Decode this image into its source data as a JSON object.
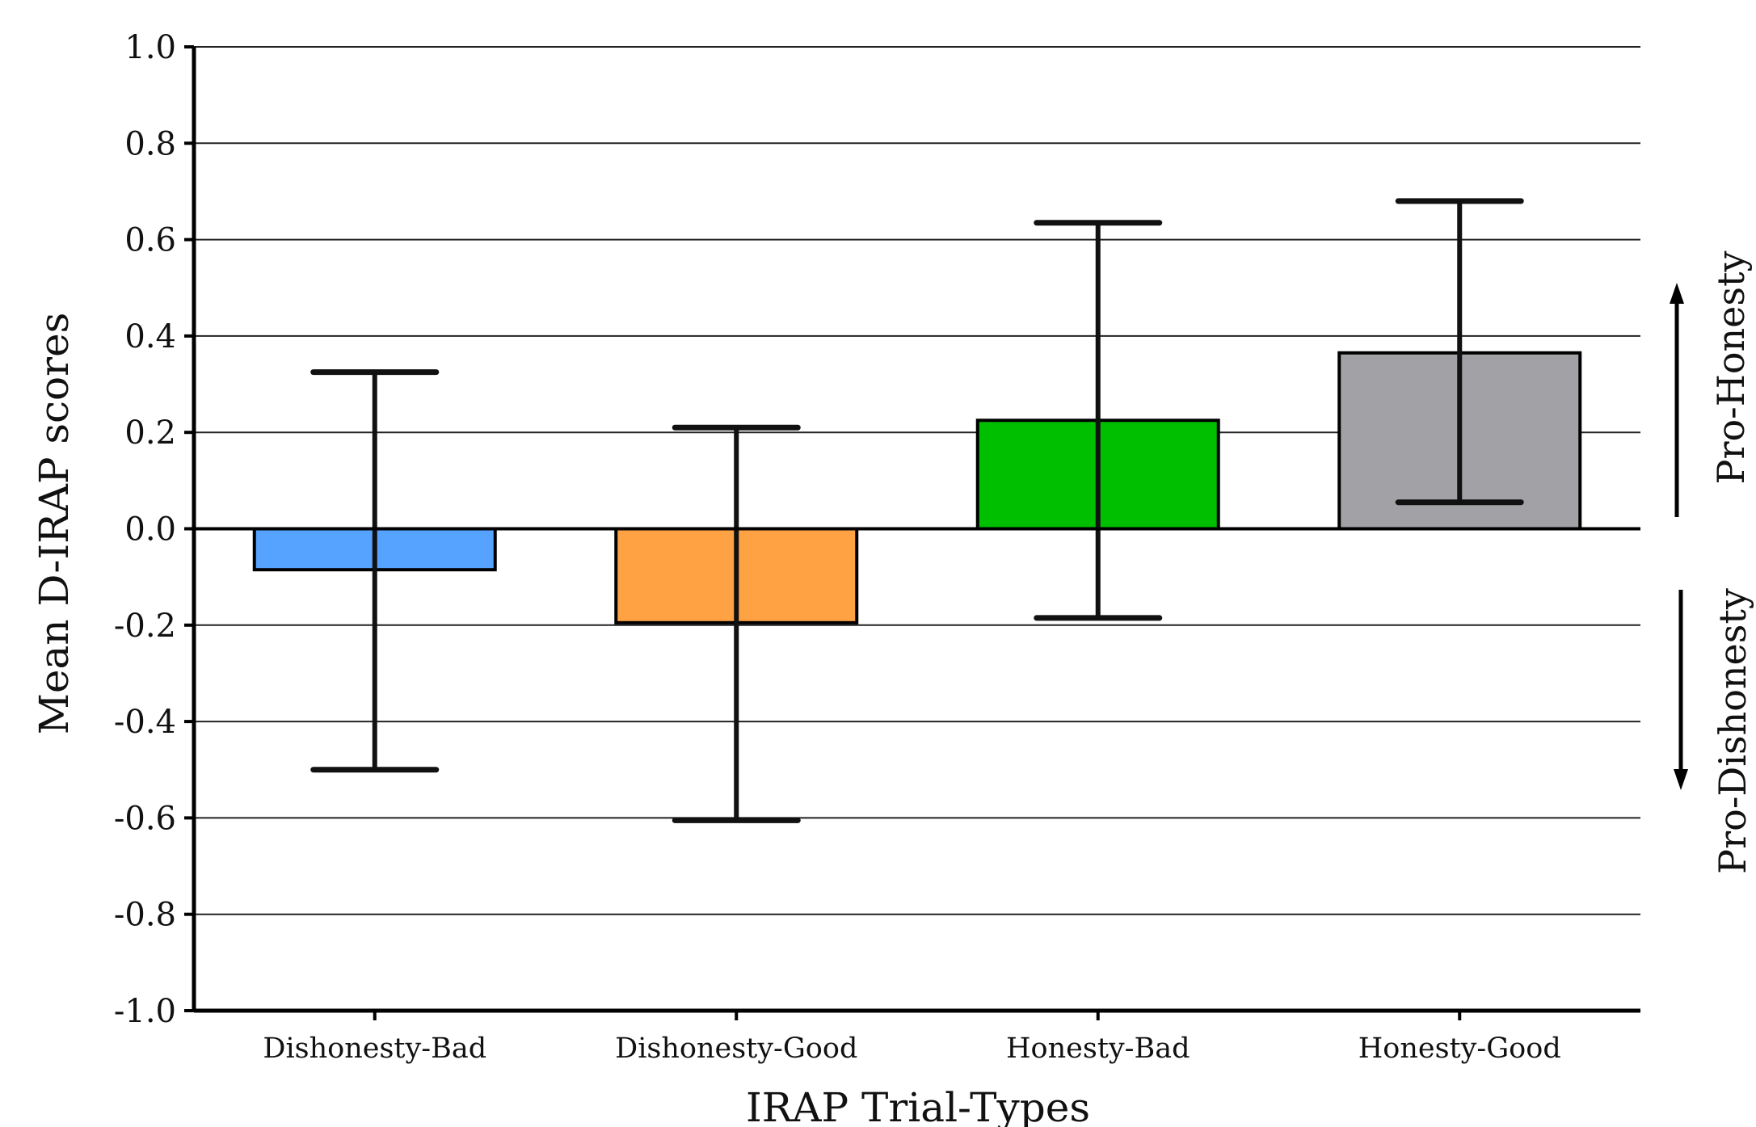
{
  "chart_data": {
    "type": "bar",
    "title": "",
    "xlabel": "IRAP Trial-Types",
    "ylabel": "Mean D-IRAP scores",
    "ylim": [
      -1.0,
      1.0
    ],
    "yticks": [
      "1.0",
      "0.8",
      "0.6",
      "0.4",
      "0.2",
      "0.0",
      "-0.2",
      "-0.4",
      "-0.6",
      "-0.8",
      "-1.0"
    ],
    "grid": "horizontal",
    "categories": [
      "Dishonesty-Bad",
      "Dishonesty-Good",
      "Honesty-Bad",
      "Honesty-Good"
    ],
    "values": [
      -0.085,
      -0.195,
      0.225,
      0.365
    ],
    "error_low": [
      -0.5,
      -0.605,
      -0.185,
      0.055
    ],
    "error_high": [
      0.325,
      0.21,
      0.635,
      0.68
    ],
    "colors": [
      "#56a2ff",
      "#ffa244",
      "#00bf00",
      "#a2a2a6"
    ],
    "annotations": {
      "upper": "Pro-Honesty",
      "lower": "Pro-Dishonesty"
    }
  }
}
